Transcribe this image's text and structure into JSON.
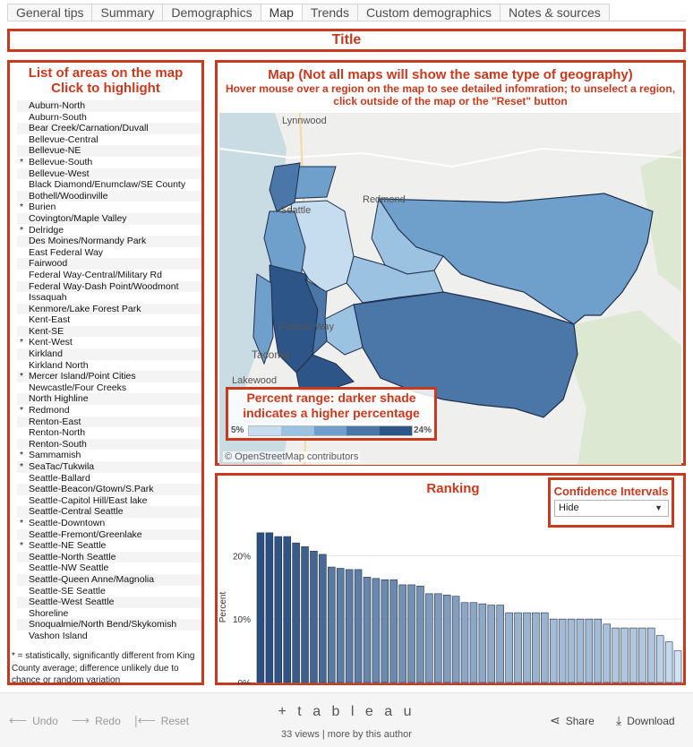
{
  "tabs": [
    "General tips",
    "Summary",
    "Demographics",
    "Map",
    "Trends",
    "Custom demographics",
    "Notes & sources"
  ],
  "active_tab": "Map",
  "title_box": {
    "label": "Title"
  },
  "list_panel": {
    "heading_line1": "List of areas on the map",
    "heading_line2": "Click to highlight",
    "areas": [
      {
        "star": "",
        "name": "Auburn-North"
      },
      {
        "star": "",
        "name": "Auburn-South"
      },
      {
        "star": "",
        "name": "Bear Creek/Carnation/Duvall"
      },
      {
        "star": "",
        "name": "Bellevue-Central"
      },
      {
        "star": "",
        "name": "Bellevue-NE"
      },
      {
        "star": "*",
        "name": "Bellevue-South"
      },
      {
        "star": "",
        "name": "Bellevue-West"
      },
      {
        "star": "",
        "name": "Black Diamond/Enumclaw/SE County"
      },
      {
        "star": "",
        "name": "Bothell/Woodinville"
      },
      {
        "star": "*",
        "name": "Burien"
      },
      {
        "star": "",
        "name": "Covington/Maple Valley"
      },
      {
        "star": "*",
        "name": "Delridge"
      },
      {
        "star": "",
        "name": "Des Moines/Normandy Park"
      },
      {
        "star": "",
        "name": "East Federal Way"
      },
      {
        "star": "",
        "name": "Fairwood"
      },
      {
        "star": "",
        "name": "Federal Way-Central/Military Rd"
      },
      {
        "star": "",
        "name": "Federal Way-Dash Point/Woodmont"
      },
      {
        "star": "",
        "name": "Issaquah"
      },
      {
        "star": "",
        "name": "Kenmore/Lake Forest Park"
      },
      {
        "star": "",
        "name": "Kent-East"
      },
      {
        "star": "",
        "name": "Kent-SE"
      },
      {
        "star": "*",
        "name": "Kent-West"
      },
      {
        "star": "",
        "name": "Kirkland"
      },
      {
        "star": "",
        "name": "Kirkland North"
      },
      {
        "star": "*",
        "name": "Mercer Island/Point Cities"
      },
      {
        "star": "",
        "name": "Newcastle/Four Creeks"
      },
      {
        "star": "",
        "name": "North Highline"
      },
      {
        "star": "*",
        "name": "Redmond"
      },
      {
        "star": "",
        "name": "Renton-East"
      },
      {
        "star": "",
        "name": "Renton-North"
      },
      {
        "star": "",
        "name": "Renton-South"
      },
      {
        "star": "*",
        "name": "Sammamish"
      },
      {
        "star": "*",
        "name": "SeaTac/Tukwila"
      },
      {
        "star": "",
        "name": "Seattle-Ballard"
      },
      {
        "star": "",
        "name": "Seattle-Beacon/Gtown/S.Park"
      },
      {
        "star": "",
        "name": "Seattle-Capitol Hill/East lake"
      },
      {
        "star": "",
        "name": "Seattle-Central Seattle"
      },
      {
        "star": "*",
        "name": "Seattle-Downtown"
      },
      {
        "star": "",
        "name": "Seattle-Fremont/Greenlake"
      },
      {
        "star": "*",
        "name": "Seattle-NE Seattle"
      },
      {
        "star": "",
        "name": "Seattle-North Seattle"
      },
      {
        "star": "",
        "name": "Seattle-NW Seattle"
      },
      {
        "star": "",
        "name": "Seattle-Queen Anne/Magnolia"
      },
      {
        "star": "",
        "name": "Seattle-SE Seattle"
      },
      {
        "star": "",
        "name": "Seattle-West Seattle"
      },
      {
        "star": "",
        "name": "Shoreline"
      },
      {
        "star": "",
        "name": "Snoqualmie/North Bend/Skykomish"
      },
      {
        "star": "",
        "name": "Vashon Island"
      }
    ],
    "footnote": "* = statistically, significantly different from King County average; difference unlikely due to chance or random variation"
  },
  "map_panel": {
    "heading": "Map (Not all maps will show the same type of geography)",
    "subheading_line1": "Hover mouse over a region on the map to see detailed infomration; to unselect a region,",
    "subheading_line2": "click outside of the map or the \"Reset\" button",
    "place_labels": [
      "Lynnwood",
      "Seattle",
      "Redmond",
      "Federal Way",
      "Tacoma",
      "Lakewood"
    ],
    "credit": "© OpenStreetMap contributors",
    "legend": {
      "title_line1": "Percent range: darker shade",
      "title_line2": "indicates a higher percentage",
      "min": "5%",
      "max": "24%",
      "colors": [
        "#c6dcef",
        "#9cc2e2",
        "#6f9fcb",
        "#4a77a8",
        "#2e5587"
      ]
    }
  },
  "ranking_panel": {
    "heading": "Ranking",
    "ci_title": "Confidence Intervals",
    "ci_value": "Hide"
  },
  "chart_data": {
    "type": "bar",
    "ylabel": "Percent",
    "ylim": [
      0,
      24
    ],
    "yticks": [
      "0%",
      "10%",
      "20%"
    ],
    "values": [
      23.6,
      23.6,
      23.0,
      23.0,
      22.0,
      21.4,
      20.7,
      20.2,
      18.2,
      18.0,
      17.8,
      17.8,
      16.6,
      16.4,
      16.2,
      16.2,
      15.4,
      15.4,
      15.2,
      14.0,
      14.0,
      13.8,
      13.6,
      12.6,
      12.6,
      12.4,
      12.2,
      12.2,
      11.0,
      11.0,
      11.0,
      11.0,
      11.0,
      10.0,
      10.0,
      10.0,
      10.0,
      10.0,
      10.0,
      9.2,
      8.6,
      8.6,
      8.6,
      8.6,
      8.6,
      7.4,
      6.4,
      5.0
    ],
    "color_low": "#cfe3f3",
    "color_high": "#2b4f80"
  },
  "footer": {
    "undo": "Undo",
    "redo": "Redo",
    "reset": "Reset",
    "brand": "+ t a b l e a u",
    "views": "33 views | more by this author",
    "share": "Share",
    "download": "Download"
  }
}
